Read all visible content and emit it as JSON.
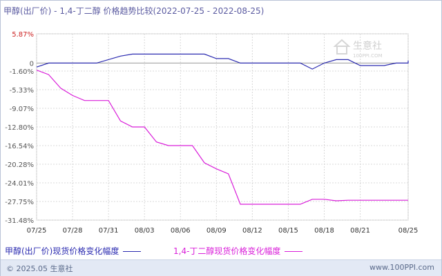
{
  "title": "甲醇(出厂价) - 1,4-丁二醇 价格趋势比较(2022-07-25 - 2022-08-25)",
  "watermark": {
    "name": "生意社",
    "url": "100PPI.COM"
  },
  "footer": {
    "copyright": "© 2025.05 生意社",
    "site": "www.100PPI.com"
  },
  "colors": {
    "series1": "#2a2ab0",
    "series2": "#d91ed9",
    "axis_label": "#cc2222",
    "grid": "#d8d8d8"
  },
  "chart_data": {
    "type": "line",
    "x_ticks": [
      "07/25",
      "07/28",
      "07/31",
      "08/03",
      "08/06",
      "08/09",
      "08/12",
      "08/15",
      "08/18",
      "08/21",
      "08/25"
    ],
    "x_range": [
      "07/25",
      "08/25"
    ],
    "y_ticks": [
      "5.87%",
      "0",
      "-1.60%",
      "-5.33%",
      "-9.07%",
      "-12.80%",
      "-16.54%",
      "-20.28%",
      "-24.01%",
      "-27.75%",
      "-31.48%"
    ],
    "ylim": [
      -31.48,
      5.87
    ],
    "grid": true,
    "legend_position": "bottom",
    "series": [
      {
        "name": "甲醇(出厂价)现货价格变化幅度",
        "color": "#2a2ab0",
        "points": [
          [
            "07/25",
            -0.8
          ],
          [
            "07/26",
            0
          ],
          [
            "07/29",
            0
          ],
          [
            "07/30",
            0
          ],
          [
            "08/01",
            1.4
          ],
          [
            "08/02",
            1.8
          ],
          [
            "08/08",
            1.8
          ],
          [
            "08/09",
            0.9
          ],
          [
            "08/10",
            0.9
          ],
          [
            "08/11",
            0
          ],
          [
            "08/16",
            0
          ],
          [
            "08/17",
            -1.2
          ],
          [
            "08/18",
            0
          ],
          [
            "08/19",
            0.7
          ],
          [
            "08/20",
            0.7
          ],
          [
            "08/21",
            -0.5
          ],
          [
            "08/23",
            -0.5
          ],
          [
            "08/24",
            0
          ],
          [
            "08/25",
            0
          ],
          [
            "08/26",
            0.5
          ],
          [
            "08/27",
            0.5
          ]
        ]
      },
      {
        "name": "1,4-丁二醇现货价格变化幅度",
        "color": "#d91ed9",
        "points": [
          [
            "07/25",
            -1.4
          ],
          [
            "07/26",
            -2.3
          ],
          [
            "07/27",
            -5.0
          ],
          [
            "07/28",
            -6.5
          ],
          [
            "07/29",
            -7.5
          ],
          [
            "07/31",
            -7.5
          ],
          [
            "08/01",
            -11.6
          ],
          [
            "08/02",
            -12.8
          ],
          [
            "08/03",
            -12.8
          ],
          [
            "08/04",
            -15.8
          ],
          [
            "08/05",
            -16.54
          ],
          [
            "08/07",
            -16.54
          ],
          [
            "08/08",
            -20.0
          ],
          [
            "08/09",
            -21.2
          ],
          [
            "08/10",
            -22.2
          ],
          [
            "08/11",
            -28.3
          ],
          [
            "08/16",
            -28.3
          ],
          [
            "08/17",
            -27.3
          ],
          [
            "08/18",
            -27.3
          ],
          [
            "08/19",
            -27.6
          ],
          [
            "08/20",
            -27.5
          ],
          [
            "08/27",
            -27.5
          ]
        ]
      }
    ]
  }
}
